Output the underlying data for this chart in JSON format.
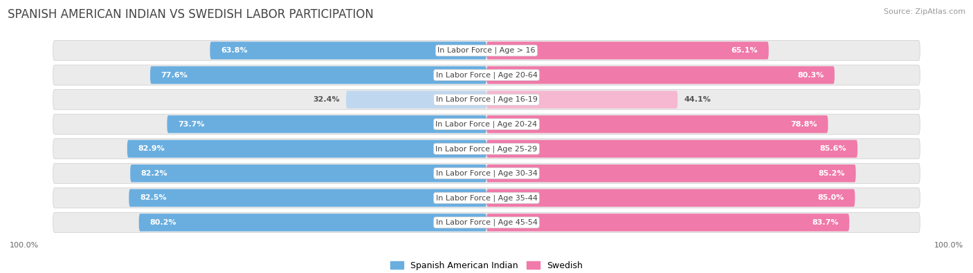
{
  "title": "SPANISH AMERICAN INDIAN VS SWEDISH LABOR PARTICIPATION",
  "source": "Source: ZipAtlas.com",
  "categories": [
    "In Labor Force | Age > 16",
    "In Labor Force | Age 20-64",
    "In Labor Force | Age 16-19",
    "In Labor Force | Age 20-24",
    "In Labor Force | Age 25-29",
    "In Labor Force | Age 30-34",
    "In Labor Force | Age 35-44",
    "In Labor Force | Age 45-54"
  ],
  "left_values": [
    63.8,
    77.6,
    32.4,
    73.7,
    82.9,
    82.2,
    82.5,
    80.2
  ],
  "right_values": [
    65.1,
    80.3,
    44.1,
    78.8,
    85.6,
    85.2,
    85.0,
    83.7
  ],
  "left_color": "#6aaee0",
  "left_color_light": "#c0d8ef",
  "right_color": "#f07aaa",
  "right_color_light": "#f5b8d0",
  "background_color": "#ffffff",
  "row_bg": "#ebebeb",
  "legend_label_left": "Spanish American Indian",
  "legend_label_right": "Swedish",
  "x_max": 100.0,
  "title_fontsize": 12,
  "value_fontsize": 8,
  "category_fontsize": 8
}
